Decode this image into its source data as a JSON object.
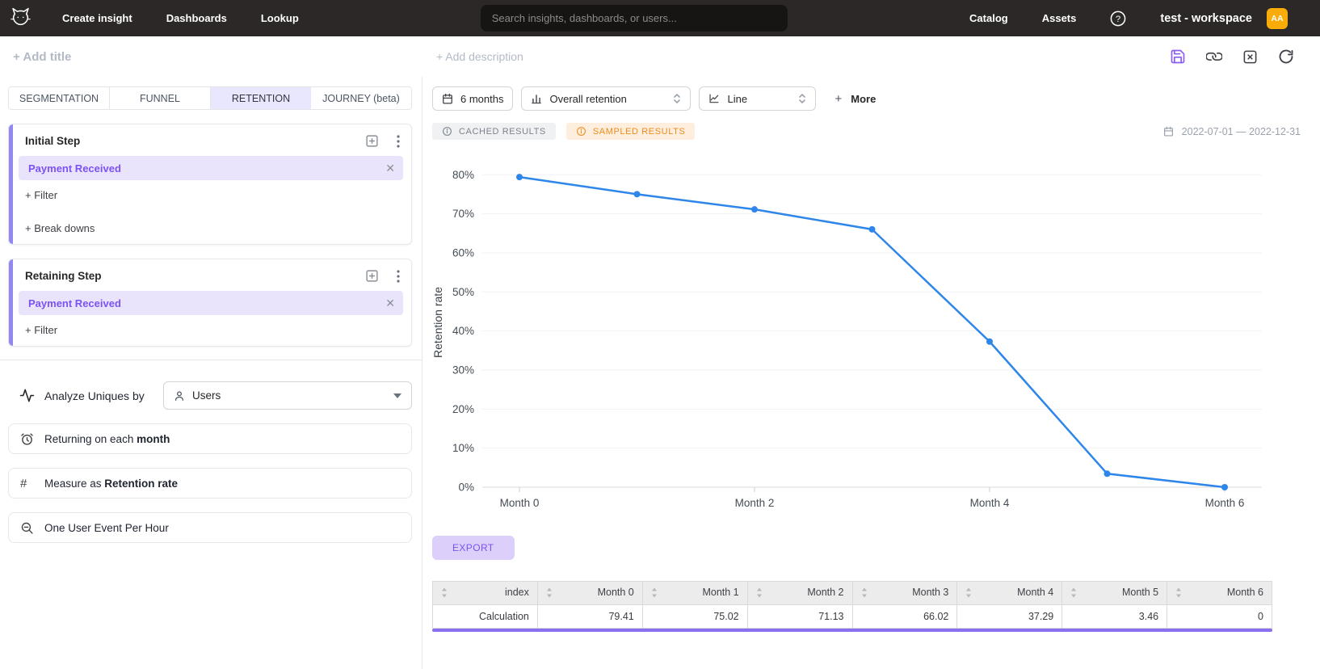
{
  "navbar": {
    "nav_left": [
      {
        "label": "Create insight"
      },
      {
        "label": "Dashboards"
      },
      {
        "label": "Lookup"
      }
    ],
    "search_placeholder": "Search insights, dashboards, or users...",
    "nav_right": [
      {
        "label": "Catalog"
      },
      {
        "label": "Assets"
      }
    ],
    "workspace": "test - workspace",
    "avatar_initials": "AA"
  },
  "titlebar": {
    "add_title": "+ Add title",
    "add_description": "+ Add description"
  },
  "tabs": [
    {
      "label": "SEGMENTATION",
      "active": false
    },
    {
      "label": "FUNNEL",
      "active": false
    },
    {
      "label": "RETENTION",
      "active": true
    },
    {
      "label": "JOURNEY (beta)",
      "active": false
    }
  ],
  "steps": [
    {
      "title": "Initial Step",
      "event": "Payment Received",
      "actions": [
        "+ Filter",
        "+ Break downs"
      ]
    },
    {
      "title": "Retaining Step",
      "event": "Payment Received",
      "actions": [
        "+ Filter"
      ]
    }
  ],
  "options": {
    "analyze_label": "Analyze Uniques by",
    "analyze_value": "Users",
    "returning_prefix": "Returning on each ",
    "returning_bold": "month",
    "measure_prefix": "Measure as ",
    "measure_bold": "Retention rate",
    "one_event": "One User Event Per Hour"
  },
  "controls": {
    "date_window": "6 months",
    "retention_type": "Overall retention",
    "chart_type": "Line",
    "more_label": "More"
  },
  "badges": {
    "cached": "CACHED RESULTS",
    "sampled": "SAMPLED RESULTS",
    "date_range": "2022-07-01 — 2022-12-31"
  },
  "export_label": "EXPORT",
  "chart_data": {
    "type": "line",
    "x": [
      "Month 0",
      "Month 1",
      "Month 2",
      "Month 3",
      "Month 4",
      "Month 5",
      "Month 6"
    ],
    "series": [
      {
        "name": "Retention rate",
        "values": [
          79.41,
          75.02,
          71.13,
          66.02,
          37.29,
          3.46,
          0
        ]
      }
    ],
    "title": "",
    "xlabel": "",
    "ylabel": "Retention rate",
    "ylim": [
      0,
      80
    ],
    "yticks": [
      "0%",
      "10%",
      "20%",
      "30%",
      "40%",
      "50%",
      "60%",
      "70%",
      "80%"
    ],
    "x_labels_every": 2,
    "grid": true,
    "legend": false,
    "line_color": "#2e86ea"
  },
  "table": {
    "headers": [
      "index",
      "Month 0",
      "Month 1",
      "Month 2",
      "Month 3",
      "Month 4",
      "Month 5",
      "Month 6"
    ],
    "rows": [
      [
        "Calculation",
        "79.41",
        "75.02",
        "71.13",
        "66.02",
        "37.29",
        "3.46",
        "0"
      ]
    ]
  },
  "colors": {
    "accent_purple": "#7a52f4",
    "pill_bg": "#e9e4fc",
    "card_accent": "#9087f0",
    "active_tab_bg": "#e9e7fd",
    "line_blue": "#2e86ea",
    "sampled_orange": "#ef8b1d",
    "avatar_amber": "#f9ab08",
    "navbar_bg": "#2d2828",
    "export_bg": "#dcd0fb"
  }
}
